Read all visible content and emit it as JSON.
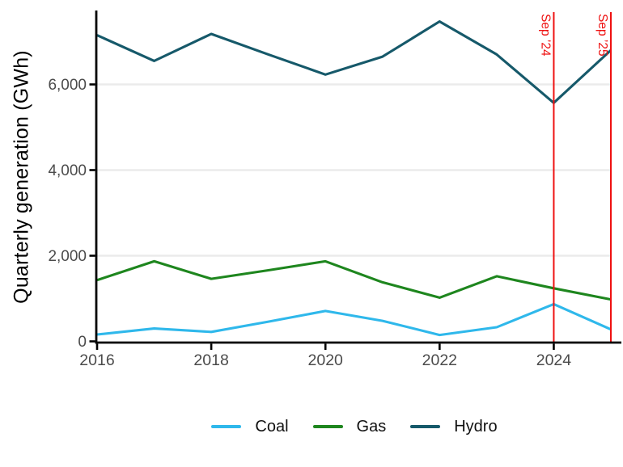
{
  "chart_data": {
    "type": "line",
    "title": "",
    "ylabel": "Quarterly generation (GWh)",
    "xlabel": "",
    "x": [
      2016,
      2017,
      2018,
      2019,
      2020,
      2021,
      2022,
      2023,
      2024,
      2025
    ],
    "series": [
      {
        "name": "Coal",
        "color": "#2FB8EB",
        "values": [
          160,
          300,
          220,
          460,
          710,
          480,
          150,
          330,
          870,
          280
        ]
      },
      {
        "name": "Gas",
        "color": "#1E861E",
        "values": [
          1430,
          1870,
          1460,
          1660,
          1870,
          1380,
          1020,
          1520,
          1240,
          980
        ]
      },
      {
        "name": "Hydro",
        "color": "#16596A",
        "values": [
          7150,
          6550,
          7180,
          6700,
          6230,
          6650,
          7470,
          6700,
          5570,
          6800
        ]
      }
    ],
    "x_ticks": [
      {
        "value": 2016,
        "label": "2016"
      },
      {
        "value": 2018,
        "label": "2018"
      },
      {
        "value": 2020,
        "label": "2020"
      },
      {
        "value": 2022,
        "label": "2022"
      },
      {
        "value": 2024,
        "label": "2024"
      }
    ],
    "y_ticks": [
      {
        "value": 0,
        "label": "0"
      },
      {
        "value": 2000,
        "label": "2,000"
      },
      {
        "value": 4000,
        "label": "4,000"
      },
      {
        "value": 6000,
        "label": "6,000"
      }
    ],
    "xlim": [
      2016,
      2025
    ],
    "ylim": [
      0,
      7700
    ],
    "grid": "horizontal",
    "legend_position": "bottom",
    "markers": [
      {
        "label": "Sep ’24",
        "year": 2024,
        "color": "#EE1111"
      },
      {
        "label": "Sep ’25",
        "year": 2025,
        "color": "#EE1111"
      }
    ]
  }
}
